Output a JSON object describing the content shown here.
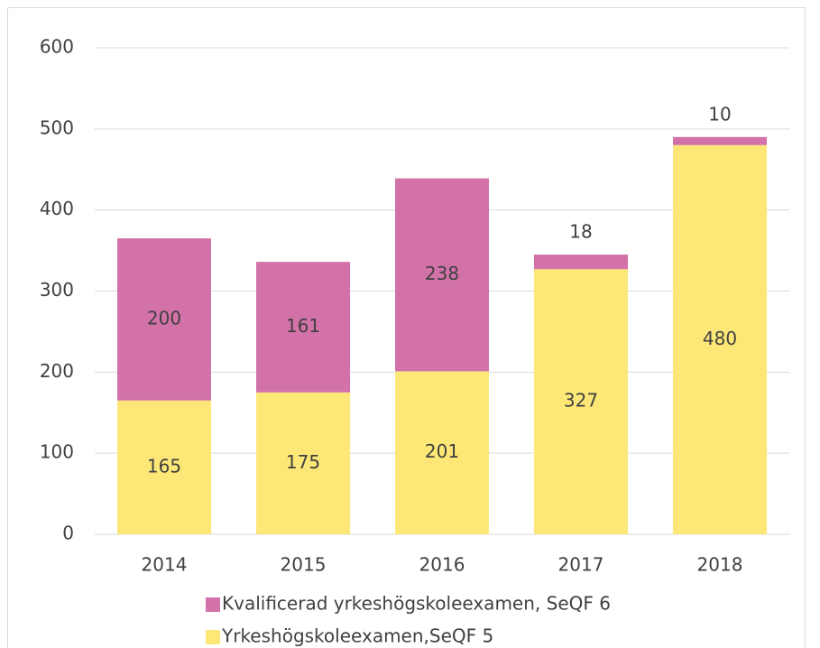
{
  "chart_data": {
    "type": "stacked_bar",
    "categories": [
      "2014",
      "2015",
      "2016",
      "2017",
      "2018"
    ],
    "series": [
      {
        "name": "Kvalificerad yrkeshögskoleexamen, SeQF 6",
        "color": "#d272a9",
        "values": [
          200,
          161,
          238,
          18,
          10
        ]
      },
      {
        "name": "Yrkeshögskoleexamen,SeQF 5",
        "color": "#fde877",
        "values": [
          165,
          175,
          201,
          327,
          480
        ]
      }
    ],
    "ylim": [
      0,
      600
    ],
    "yticks": [
      0,
      100,
      200,
      300,
      400,
      500,
      600
    ],
    "grid": true,
    "legend": "bottom"
  }
}
